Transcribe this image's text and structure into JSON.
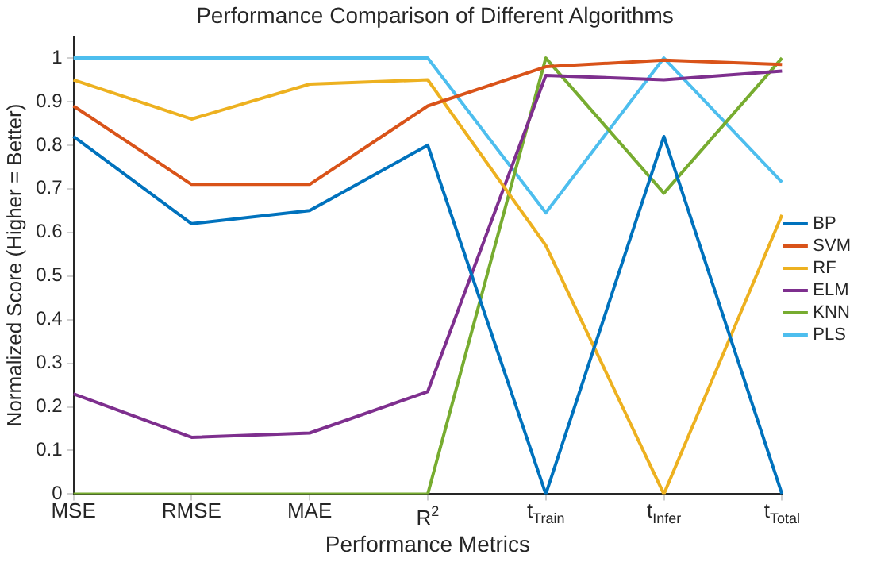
{
  "chart_data": {
    "type": "line",
    "title": "Performance Comparison of Different Algorithms",
    "xlabel": "Performance Metrics",
    "ylabel": "Normalized Score (Higher = Better)",
    "categories": [
      "MSE",
      "RMSE",
      "MAE",
      "R$^{2}$",
      "t$_{Train}$",
      "t$_{Infer}$",
      "t$_{Total}$"
    ],
    "series": [
      {
        "name": "BP",
        "color": "#0072bd",
        "values": [
          0.82,
          0.62,
          0.65,
          0.8,
          0,
          0.82,
          0
        ]
      },
      {
        "name": "SVM",
        "color": "#d95319",
        "values": [
          0.89,
          0.71,
          0.71,
          0.89,
          0.98,
          0.995,
          0.985
        ]
      },
      {
        "name": "RF",
        "color": "#edb120",
        "values": [
          0.95,
          0.86,
          0.94,
          0.95,
          0.57,
          0,
          0.64
        ]
      },
      {
        "name": "ELM",
        "color": "#7e2f8e",
        "values": [
          0.23,
          0.13,
          0.14,
          0.235,
          0.96,
          0.95,
          0.97
        ]
      },
      {
        "name": "KNN",
        "color": "#77ac30",
        "values": [
          0,
          0,
          0,
          0,
          1,
          0.69,
          1
        ]
      },
      {
        "name": "PLS",
        "color": "#4dbeee",
        "values": [
          1,
          1,
          1,
          1,
          0.645,
          1,
          0.715
        ]
      }
    ],
    "ylim": [
      0,
      1.05
    ],
    "yticks": [
      0,
      0.1,
      0.2,
      0.3,
      0.4,
      0.5,
      0.6,
      0.7,
      0.8,
      0.9,
      1
    ],
    "grid": false,
    "legend": "right",
    "marker": "none",
    "line_style": "solid"
  }
}
